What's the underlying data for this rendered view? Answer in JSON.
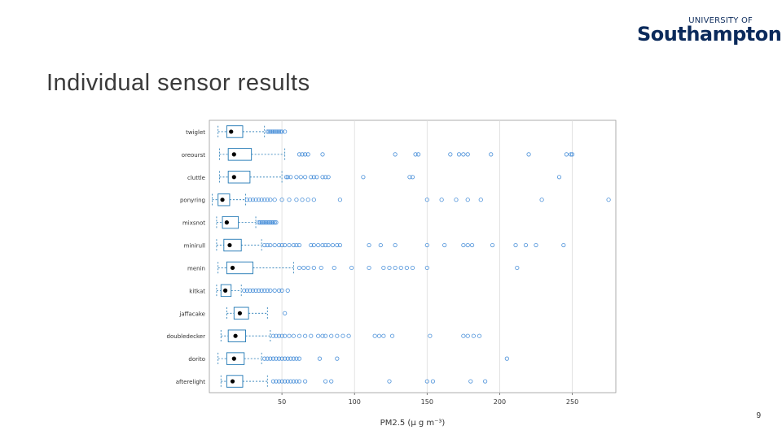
{
  "branding": {
    "logo_top": "UNIVERSITY OF",
    "logo_main": "Southampton",
    "brand_color": "#0b2a5b"
  },
  "slide": {
    "title": "Individual sensor results",
    "page_number": "9"
  },
  "chart_data": {
    "type": "boxplot",
    "orientation": "horizontal",
    "xlabel": "PM2.5 (μ g m⁻³)",
    "xticks": [
      50,
      100,
      150,
      200,
      250
    ],
    "xlim": [
      0,
      280
    ],
    "grid": true,
    "box_color": "#1f77b4",
    "outlier_color": "#4a90d9",
    "median_color": "#000000",
    "series": [
      {
        "name": "twiglet",
        "whisker_low": 6,
        "q1": 12,
        "median": 15,
        "q3": 23,
        "whisker_high": 38,
        "outliers": [
          40,
          41,
          42,
          43,
          44,
          45,
          46,
          47,
          48,
          49,
          50,
          52
        ]
      },
      {
        "name": "oreourst",
        "whisker_low": 7,
        "q1": 13,
        "median": 17,
        "q3": 29,
        "whisker_high": 52,
        "outliers": [
          62,
          64,
          66,
          68,
          78,
          128,
          142,
          144,
          166,
          172,
          175,
          178,
          194,
          220,
          246,
          249,
          250
        ]
      },
      {
        "name": "cluttle",
        "whisker_low": 7,
        "q1": 13,
        "median": 17,
        "q3": 28,
        "whisker_high": 50,
        "outliers": [
          53,
          54,
          56,
          60,
          63,
          66,
          70,
          72,
          74,
          78,
          80,
          82,
          106,
          138,
          140,
          241
        ]
      },
      {
        "name": "ponyring",
        "whisker_low": 2,
        "q1": 6,
        "median": 9,
        "q3": 14,
        "whisker_high": 25,
        "outliers": [
          26,
          28,
          30,
          32,
          34,
          36,
          38,
          40,
          42,
          45,
          50,
          55,
          60,
          64,
          68,
          72,
          90,
          150,
          160,
          170,
          178,
          187,
          229,
          275
        ]
      },
      {
        "name": "mixsnot",
        "whisker_low": 5,
        "q1": 9,
        "median": 12,
        "q3": 20,
        "whisker_high": 32,
        "outliers": [
          34,
          35,
          36,
          37,
          38,
          39,
          40,
          41,
          42,
          43,
          44,
          45,
          46
        ]
      },
      {
        "name": "minirull",
        "whisker_low": 5,
        "q1": 10,
        "median": 14,
        "q3": 22,
        "whisker_high": 36,
        "outliers": [
          38,
          40,
          42,
          45,
          48,
          50,
          52,
          55,
          58,
          60,
          62,
          70,
          72,
          75,
          78,
          80,
          82,
          85,
          88,
          90,
          110,
          118,
          128,
          150,
          162,
          175,
          178,
          181,
          195,
          211,
          218,
          225,
          244
        ]
      },
      {
        "name": "menin",
        "whisker_low": 6,
        "q1": 12,
        "median": 16,
        "q3": 30,
        "whisker_high": 58,
        "outliers": [
          62,
          65,
          68,
          72,
          77,
          86,
          98,
          110,
          120,
          124,
          128,
          132,
          136,
          140,
          150,
          212
        ]
      },
      {
        "name": "kitkat",
        "whisker_low": 5,
        "q1": 8,
        "median": 11,
        "q3": 15,
        "whisker_high": 22,
        "outliers": [
          24,
          26,
          28,
          30,
          32,
          34,
          36,
          38,
          40,
          42,
          45,
          48,
          50,
          54
        ]
      },
      {
        "name": "jaffacake",
        "whisker_low": 12,
        "q1": 17,
        "median": 21,
        "q3": 27,
        "whisker_high": 40,
        "outliers": [
          52
        ]
      },
      {
        "name": "doubledecker",
        "whisker_low": 8,
        "q1": 13,
        "median": 18,
        "q3": 25,
        "whisker_high": 42,
        "outliers": [
          44,
          46,
          48,
          50,
          52,
          55,
          58,
          62,
          66,
          70,
          75,
          78,
          80,
          84,
          88,
          92,
          96,
          114,
          117,
          120,
          126,
          152,
          175,
          178,
          182,
          186
        ]
      },
      {
        "name": "dorito",
        "whisker_low": 6,
        "q1": 12,
        "median": 17,
        "q3": 24,
        "whisker_high": 36,
        "outliers": [
          38,
          40,
          42,
          44,
          46,
          48,
          50,
          52,
          54,
          56,
          58,
          60,
          62,
          76,
          88,
          205
        ]
      },
      {
        "name": "afterelight",
        "whisker_low": 8,
        "q1": 12,
        "median": 16,
        "q3": 23,
        "whisker_high": 40,
        "outliers": [
          44,
          46,
          48,
          50,
          52,
          54,
          56,
          58,
          60,
          62,
          66,
          80,
          84,
          124,
          150,
          154,
          180,
          190
        ]
      }
    ]
  }
}
